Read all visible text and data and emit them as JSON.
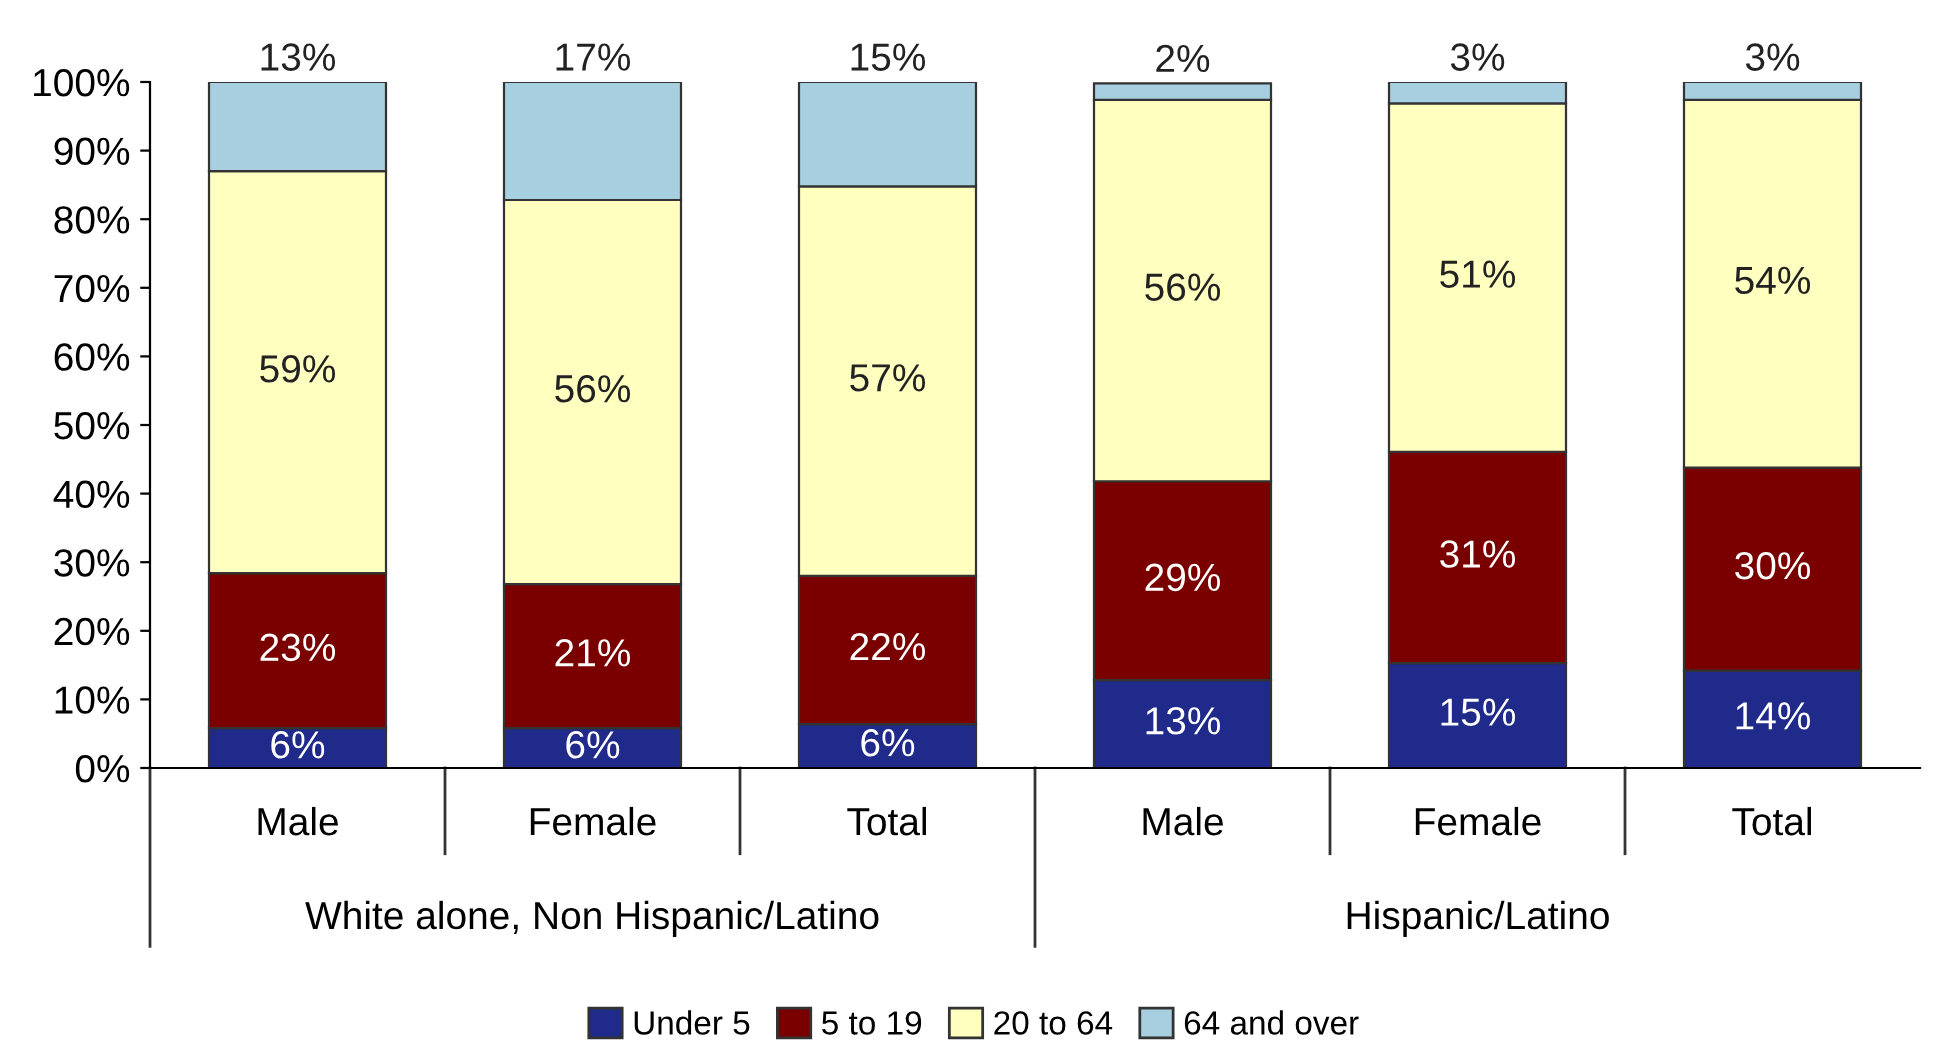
{
  "chart_data": {
    "type": "bar",
    "stacked": true,
    "categories": [
      "Male",
      "Female",
      "Total",
      "Male",
      "Female",
      "Total"
    ],
    "annotations": [
      "White alone, Non Hispanic/Latino",
      "Hispanic/Latino"
    ],
    "ylim": [
      0,
      100
    ],
    "yticks": [
      {
        "value": 0,
        "label": "0%"
      },
      {
        "value": 10,
        "label": "10%"
      },
      {
        "value": 20,
        "label": "20%"
      },
      {
        "value": 30,
        "label": "30%"
      },
      {
        "value": 40,
        "label": "40%"
      },
      {
        "value": 50,
        "label": "50%"
      },
      {
        "value": 60,
        "label": "60%"
      },
      {
        "value": 70,
        "label": "70%"
      },
      {
        "value": 80,
        "label": "80%"
      },
      {
        "value": 90,
        "label": "90%"
      },
      {
        "value": 100,
        "label": "100%"
      }
    ],
    "grid": false,
    "legend": "bottom",
    "series": [
      {
        "name": "Under 5",
        "color": "#1f2a8a",
        "values": [
          5.8,
          5.8,
          6.4,
          12.8,
          15.3,
          14.2
        ],
        "value_labels": [
          "6%",
          "6%",
          "6%",
          "13%",
          "15%",
          "14%"
        ]
      },
      {
        "name": "5 to 19",
        "color": "#7a0000",
        "values": [
          22.6,
          21.0,
          21.6,
          29.0,
          30.8,
          29.6
        ],
        "value_labels": [
          "23%",
          "21%",
          "22%",
          "29%",
          "31%",
          "30%"
        ]
      },
      {
        "name": "20 to 64",
        "color": "#ffffc0",
        "values": [
          58.6,
          56.0,
          56.8,
          55.6,
          50.8,
          53.6
        ],
        "value_labels": [
          "59%",
          "56%",
          "57%",
          "56%",
          "51%",
          "54%"
        ]
      },
      {
        "name": "64 and over",
        "color": "#a8cfe0",
        "values": [
          13.0,
          17.2,
          15.2,
          2.4,
          3.1,
          2.6
        ],
        "value_labels": [
          "13%",
          "17%",
          "15%",
          "2%",
          "3%",
          "3%"
        ]
      }
    ]
  }
}
